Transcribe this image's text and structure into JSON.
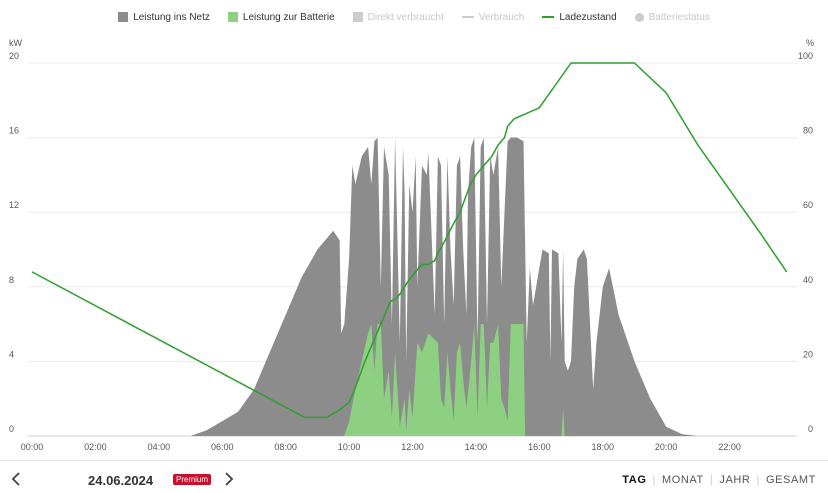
{
  "legend": [
    {
      "name": "leistung-ins-netz",
      "label": "Leistung ins Netz",
      "color": "#8c8c8c",
      "marker": "square",
      "active": true
    },
    {
      "name": "leistung-zur-batterie",
      "label": "Leistung zur Batterie",
      "color": "#8ed081",
      "marker": "square",
      "active": true
    },
    {
      "name": "direkt-verbraucht",
      "label": "Direkt verbraucht",
      "color": "#cccccc",
      "marker": "square",
      "active": false
    },
    {
      "name": "verbrauch",
      "label": "Verbrauch",
      "color": "#cccccc",
      "marker": "line",
      "active": false
    },
    {
      "name": "ladezustand",
      "label": "Ladezustand",
      "color": "#2e9e2e",
      "marker": "line",
      "active": true
    },
    {
      "name": "batteriestatus",
      "label": "Batteriestatus",
      "color": "#cccccc",
      "marker": "dot",
      "active": false
    }
  ],
  "chart_data": {
    "type": "area",
    "x_unit": "hour of day",
    "xlim": [
      0,
      24
    ],
    "x_tick_labels": [
      "00:00",
      "02:00",
      "04:00",
      "06:00",
      "08:00",
      "10:00",
      "12:00",
      "14:00",
      "16:00",
      "18:00",
      "20:00",
      "22:00"
    ],
    "x_tick_values": [
      0,
      2,
      4,
      6,
      8,
      10,
      12,
      14,
      16,
      18,
      20,
      22
    ],
    "y_left": {
      "unit": "kW",
      "ylim": [
        0,
        20
      ],
      "ticks": [
        0,
        4,
        8,
        12,
        16,
        20
      ]
    },
    "y_right": {
      "unit": "%",
      "ylim": [
        0,
        100
      ],
      "ticks": [
        0,
        20,
        40,
        60,
        80,
        100
      ]
    },
    "grid": "horizontal",
    "legend_position": "top",
    "series": [
      {
        "name": "Leistung ins Netz",
        "axis": "left",
        "type": "area",
        "color": "#8c8c8c",
        "x": [
          5.0,
          5.5,
          6.0,
          6.5,
          7.0,
          7.5,
          8.0,
          8.5,
          9.0,
          9.5,
          9.7,
          9.75,
          9.85,
          10.0,
          10.1,
          10.2,
          10.4,
          10.6,
          10.7,
          10.8,
          10.9,
          11.0,
          11.1,
          11.25,
          11.35,
          11.45,
          11.6,
          11.7,
          11.75,
          11.8,
          11.9,
          12.0,
          12.1,
          12.15,
          12.3,
          12.45,
          12.5,
          12.7,
          12.8,
          12.9,
          13.0,
          13.1,
          13.2,
          13.3,
          13.4,
          13.5,
          13.6,
          13.7,
          13.75,
          13.85,
          13.95,
          14.05,
          14.15,
          14.25,
          14.35,
          14.45,
          14.55,
          14.7,
          14.8,
          14.9,
          15.0,
          15.1,
          15.3,
          15.5,
          15.6,
          15.7,
          15.8,
          16.0,
          16.1,
          16.3,
          16.35,
          16.4,
          16.6,
          16.7,
          16.75,
          16.8,
          16.9,
          17.0,
          17.1,
          17.2,
          17.4,
          17.5,
          17.7,
          17.8,
          18.0,
          18.2,
          18.5,
          19.0,
          19.5,
          20.0,
          20.5,
          21.0
        ],
        "values": [
          0,
          0.3,
          0.8,
          1.3,
          2.5,
          4.5,
          6.5,
          8.5,
          10,
          11,
          10.5,
          5.5,
          6,
          9.5,
          14.5,
          13.5,
          15,
          15.5,
          13.5,
          15.8,
          16,
          8,
          15.5,
          14,
          6,
          16,
          5,
          15.5,
          13,
          4,
          13.5,
          12,
          15,
          8,
          14.5,
          14,
          15.2,
          6.5,
          15,
          14.5,
          6,
          15,
          10,
          7,
          14.5,
          15,
          10,
          6.5,
          13,
          15.5,
          16,
          5,
          15.5,
          16,
          6,
          15,
          14,
          15.5,
          8,
          12,
          15.8,
          16,
          16,
          15.8,
          5,
          9,
          7,
          9,
          10,
          9.8,
          4,
          10,
          9.8,
          5,
          10,
          4,
          3.5,
          4,
          8,
          9.5,
          10,
          9.5,
          2.5,
          5,
          8,
          9,
          6.5,
          4,
          2,
          0.5,
          0.1,
          0
        ]
      },
      {
        "name": "Leistung zur Batterie",
        "axis": "left",
        "type": "area",
        "color": "#8ed081",
        "x": [
          9.85,
          10.0,
          10.2,
          10.4,
          10.6,
          10.7,
          10.8,
          10.9,
          11.0,
          11.1,
          11.25,
          11.35,
          11.45,
          11.6,
          11.75,
          11.8,
          11.9,
          12.0,
          12.15,
          12.3,
          12.5,
          12.8,
          12.9,
          13.0,
          13.1,
          13.2,
          13.3,
          13.4,
          13.5,
          13.6,
          13.7,
          13.85,
          13.95,
          14.05,
          14.15,
          14.25,
          14.35,
          14.45,
          14.55,
          14.7,
          14.8,
          14.9,
          15.0,
          15.1,
          15.3,
          15.5,
          15.55,
          16.7,
          16.75,
          16.8
        ],
        "values": [
          0,
          0.8,
          2.5,
          4,
          5.5,
          6,
          3.5,
          6,
          6,
          2,
          3.5,
          1,
          4.5,
          0.5,
          2,
          0.3,
          2.5,
          1,
          5,
          4.5,
          5.5,
          5,
          2,
          1.5,
          4.5,
          2.5,
          0.8,
          4.5,
          5,
          3,
          1.5,
          4,
          6,
          1,
          6,
          6,
          1.5,
          5,
          5,
          6,
          2,
          1.5,
          0.8,
          6,
          6,
          6,
          0,
          0,
          1.5,
          0
        ]
      },
      {
        "name": "Ladezustand",
        "axis": "right",
        "type": "line",
        "color": "#2e9e2e",
        "x": [
          0,
          8.6,
          9.3,
          9.5,
          9.7,
          10.0,
          10.2,
          10.5,
          10.8,
          11.0,
          11.3,
          11.5,
          11.6,
          11.9,
          12.0,
          12.3,
          12.5,
          12.7,
          12.8,
          13.0,
          13.3,
          13.5,
          13.8,
          14.0,
          14.2,
          14.5,
          14.7,
          14.9,
          15.0,
          15.2,
          16.0,
          17.0,
          18.0,
          18.5,
          19.0,
          20.0,
          20.5,
          21.0,
          22.0,
          23.0,
          23.8
        ],
        "values": [
          44,
          5,
          5,
          6,
          7,
          9,
          13,
          20,
          26,
          30,
          36,
          37,
          38,
          42,
          43,
          46,
          46,
          47,
          49,
          52,
          57,
          60,
          67,
          70,
          72,
          75,
          78,
          80,
          83,
          85,
          88,
          100,
          100,
          100,
          100,
          92,
          85,
          78,
          66,
          54,
          44
        ]
      }
    ]
  },
  "bottom": {
    "date": "24.06.2024",
    "badge": "Premium",
    "tabs": [
      {
        "name": "tab-tag",
        "label": "TAG",
        "active": true
      },
      {
        "name": "tab-monat",
        "label": "MONAT",
        "active": false
      },
      {
        "name": "tab-jahr",
        "label": "JAHR",
        "active": false
      },
      {
        "name": "tab-gesamt",
        "label": "GESAMT",
        "active": false
      }
    ]
  }
}
